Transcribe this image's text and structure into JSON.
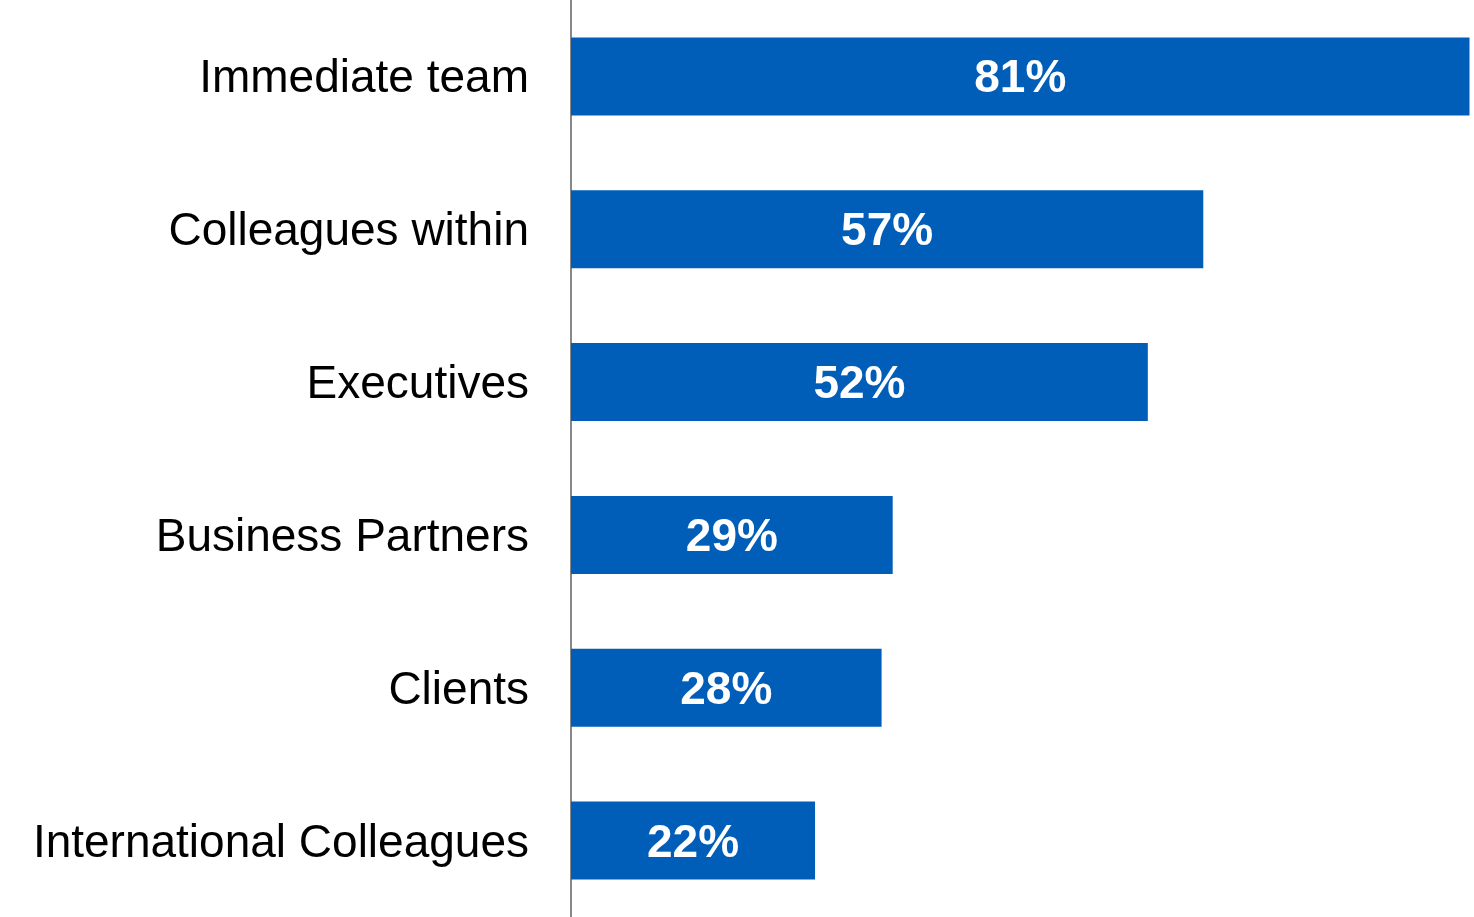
{
  "chart_data": {
    "type": "bar",
    "orientation": "horizontal",
    "categories": [
      "Immediate team",
      "Colleagues within",
      "Executives",
      "Business Partners",
      "Clients",
      "International Colleagues"
    ],
    "values": [
      81,
      57,
      52,
      29,
      28,
      22
    ],
    "value_labels": [
      "81%",
      "57%",
      "52%",
      "29%",
      "28%",
      "22%"
    ],
    "color": "#005eb8"
  }
}
